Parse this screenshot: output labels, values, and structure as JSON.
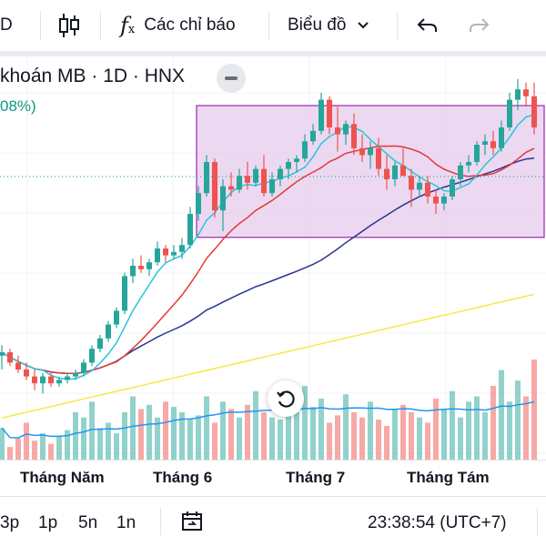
{
  "toolbar": {
    "interval_partial": "D",
    "indicators_label": "Các chỉ báo",
    "chart_type_label": "Biểu đồ"
  },
  "legend": {
    "title": "khoán MB · 1D · HNX",
    "change_partial": "08%)"
  },
  "xaxis": {
    "labels": [
      "Tháng Năm",
      "Tháng 6",
      "Tháng 7",
      "Tháng Tám"
    ]
  },
  "bottom": {
    "ranges": [
      "3p",
      "1p",
      "5n",
      "1n"
    ],
    "time": "23:38:54 (UTC+7)"
  },
  "colors": {
    "up": "#26a69a",
    "down": "#ef5350",
    "box_fill": "#e1bee7",
    "box_border": "#9c27b0",
    "ma_fast": "#26c6da",
    "ma_mid": "#e53935",
    "ma_slow": "#283593",
    "ma_long": "#f7e84a",
    "vol_ma": "#2196f3"
  },
  "chart_data": {
    "type": "candlestick",
    "symbol": "MB",
    "exchange": "HNX",
    "interval": "1D",
    "price_range": [
      0,
      100
    ],
    "candles": [
      [
        24,
        27,
        20,
        25
      ],
      [
        25,
        26,
        21,
        22
      ],
      [
        22,
        24,
        19,
        20
      ],
      [
        20,
        22,
        17,
        18
      ],
      [
        18,
        20,
        14,
        16
      ],
      [
        16,
        19,
        13,
        18
      ],
      [
        18,
        19,
        15,
        16
      ],
      [
        16,
        18,
        15,
        17
      ],
      [
        17,
        19,
        16,
        18
      ],
      [
        18,
        20,
        17,
        19
      ],
      [
        19,
        23,
        18,
        22
      ],
      [
        22,
        27,
        21,
        26
      ],
      [
        26,
        30,
        25,
        29
      ],
      [
        29,
        34,
        28,
        33
      ],
      [
        33,
        38,
        32,
        37
      ],
      [
        37,
        48,
        36,
        47
      ],
      [
        47,
        52,
        45,
        50
      ],
      [
        50,
        53,
        48,
        49
      ],
      [
        49,
        52,
        47,
        51
      ],
      [
        51,
        57,
        50,
        55
      ],
      [
        55,
        56,
        51,
        53
      ],
      [
        53,
        56,
        52,
        54
      ],
      [
        54,
        58,
        52,
        56
      ],
      [
        56,
        67,
        55,
        65
      ],
      [
        65,
        73,
        63,
        71
      ],
      [
        71,
        82,
        70,
        80
      ],
      [
        80,
        81,
        64,
        66
      ],
      [
        66,
        75,
        60,
        73
      ],
      [
        73,
        77,
        70,
        72
      ],
      [
        72,
        78,
        71,
        76
      ],
      [
        76,
        80,
        72,
        74
      ],
      [
        74,
        79,
        73,
        78
      ],
      [
        78,
        82,
        70,
        71
      ],
      [
        71,
        77,
        70,
        75
      ],
      [
        75,
        79,
        73,
        78
      ],
      [
        78,
        81,
        75,
        80
      ],
      [
        80,
        82,
        77,
        81
      ],
      [
        81,
        88,
        80,
        86
      ],
      [
        86,
        91,
        85,
        89
      ],
      [
        89,
        100,
        88,
        98
      ],
      [
        98,
        99,
        88,
        90
      ],
      [
        90,
        96,
        83,
        88
      ],
      [
        88,
        92,
        85,
        91
      ],
      [
        91,
        94,
        82,
        84
      ],
      [
        84,
        88,
        80,
        82
      ],
      [
        82,
        86,
        78,
        84
      ],
      [
        84,
        87,
        76,
        78
      ],
      [
        78,
        82,
        72,
        75
      ],
      [
        75,
        80,
        73,
        79
      ],
      [
        79,
        84,
        76,
        76
      ],
      [
        76,
        78,
        67,
        72
      ],
      [
        72,
        76,
        70,
        74
      ],
      [
        74,
        76,
        68,
        70
      ],
      [
        70,
        72,
        65,
        68
      ],
      [
        68,
        71,
        66,
        70
      ],
      [
        70,
        76,
        69,
        75
      ],
      [
        75,
        80,
        73,
        79
      ],
      [
        79,
        82,
        77,
        80
      ],
      [
        80,
        86,
        79,
        85
      ],
      [
        85,
        88,
        82,
        86
      ],
      [
        86,
        89,
        82,
        84
      ],
      [
        84,
        92,
        83,
        90
      ],
      [
        90,
        100,
        89,
        98
      ],
      [
        98,
        104,
        95,
        101
      ],
      [
        101,
        103,
        96,
        99
      ],
      [
        99,
        103,
        88,
        90
      ]
    ],
    "volume": [
      30,
      12,
      20,
      35,
      18,
      25,
      15,
      22,
      28,
      45,
      40,
      55,
      30,
      35,
      25,
      45,
      60,
      48,
      52,
      40,
      55,
      50,
      45,
      38,
      42,
      60,
      35,
      55,
      48,
      40,
      52,
      65,
      45,
      40,
      38,
      55,
      45,
      70,
      50,
      58,
      35,
      42,
      62,
      45,
      40,
      55,
      38,
      32,
      48,
      52,
      45,
      40,
      35,
      58,
      48,
      65,
      40,
      55,
      60,
      45,
      70,
      85,
      55,
      75,
      60,
      95
    ],
    "consolidation_box": {
      "start_index": 26,
      "end_index": 65,
      "low": 64,
      "high": 100
    }
  }
}
